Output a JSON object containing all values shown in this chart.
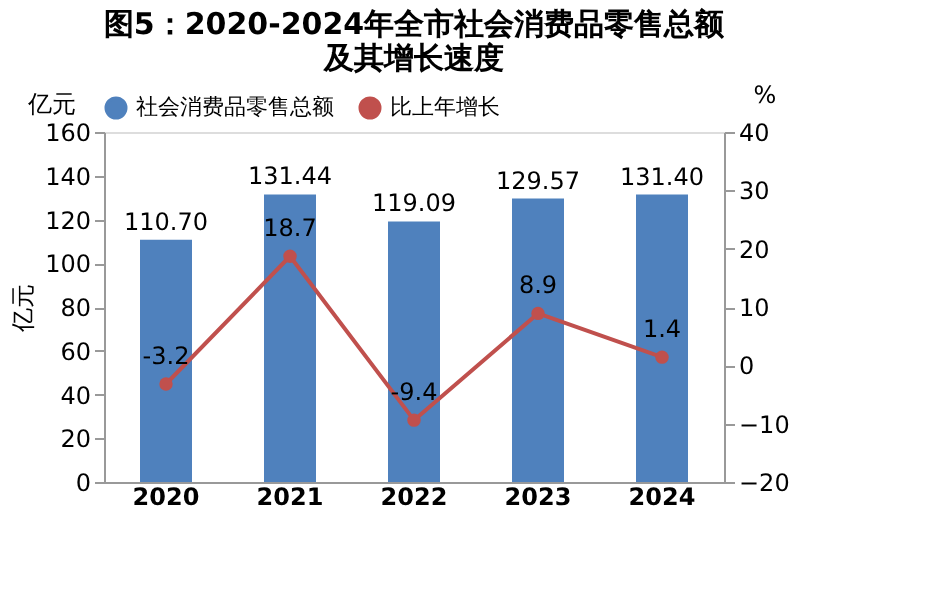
{
  "chart_data": {
    "type": "bar",
    "title": [
      "图5：2020-2024年全市社会消费品零售总额",
      "及其增长速度"
    ],
    "ylabel": "亿元",
    "y2label": "%",
    "annotations": [
      "亿元"
    ],
    "categories": [
      "2020",
      "2021",
      "2022",
      "2023",
      "2024"
    ],
    "series": [
      {
        "name": "社会消费品零售总额",
        "color": "#4f81bd",
        "values": [
          110.7,
          131.44,
          119.09,
          129.57,
          131.4
        ],
        "value_labels": [
          "110.70",
          "131.44",
          "119.09",
          "129.57",
          "131.40"
        ]
      },
      {
        "name": "比上年增长",
        "type": "line",
        "axis": "y2",
        "color": "#c0504d",
        "marker": "circle",
        "values": [
          -3.2,
          18.7,
          -9.4,
          8.9,
          1.4
        ],
        "value_labels": [
          "-3.2",
          "18.7",
          "-9.4",
          "8.9",
          "1.4"
        ]
      }
    ],
    "ylim": [
      0,
      160
    ],
    "yticks": [
      0,
      20,
      40,
      60,
      80,
      100,
      120,
      140,
      160
    ],
    "y2lim": [
      -20,
      40
    ],
    "y2ticks": [
      -20,
      -10,
      0,
      10,
      20,
      30,
      40
    ],
    "grid": false,
    "legend": "top"
  }
}
